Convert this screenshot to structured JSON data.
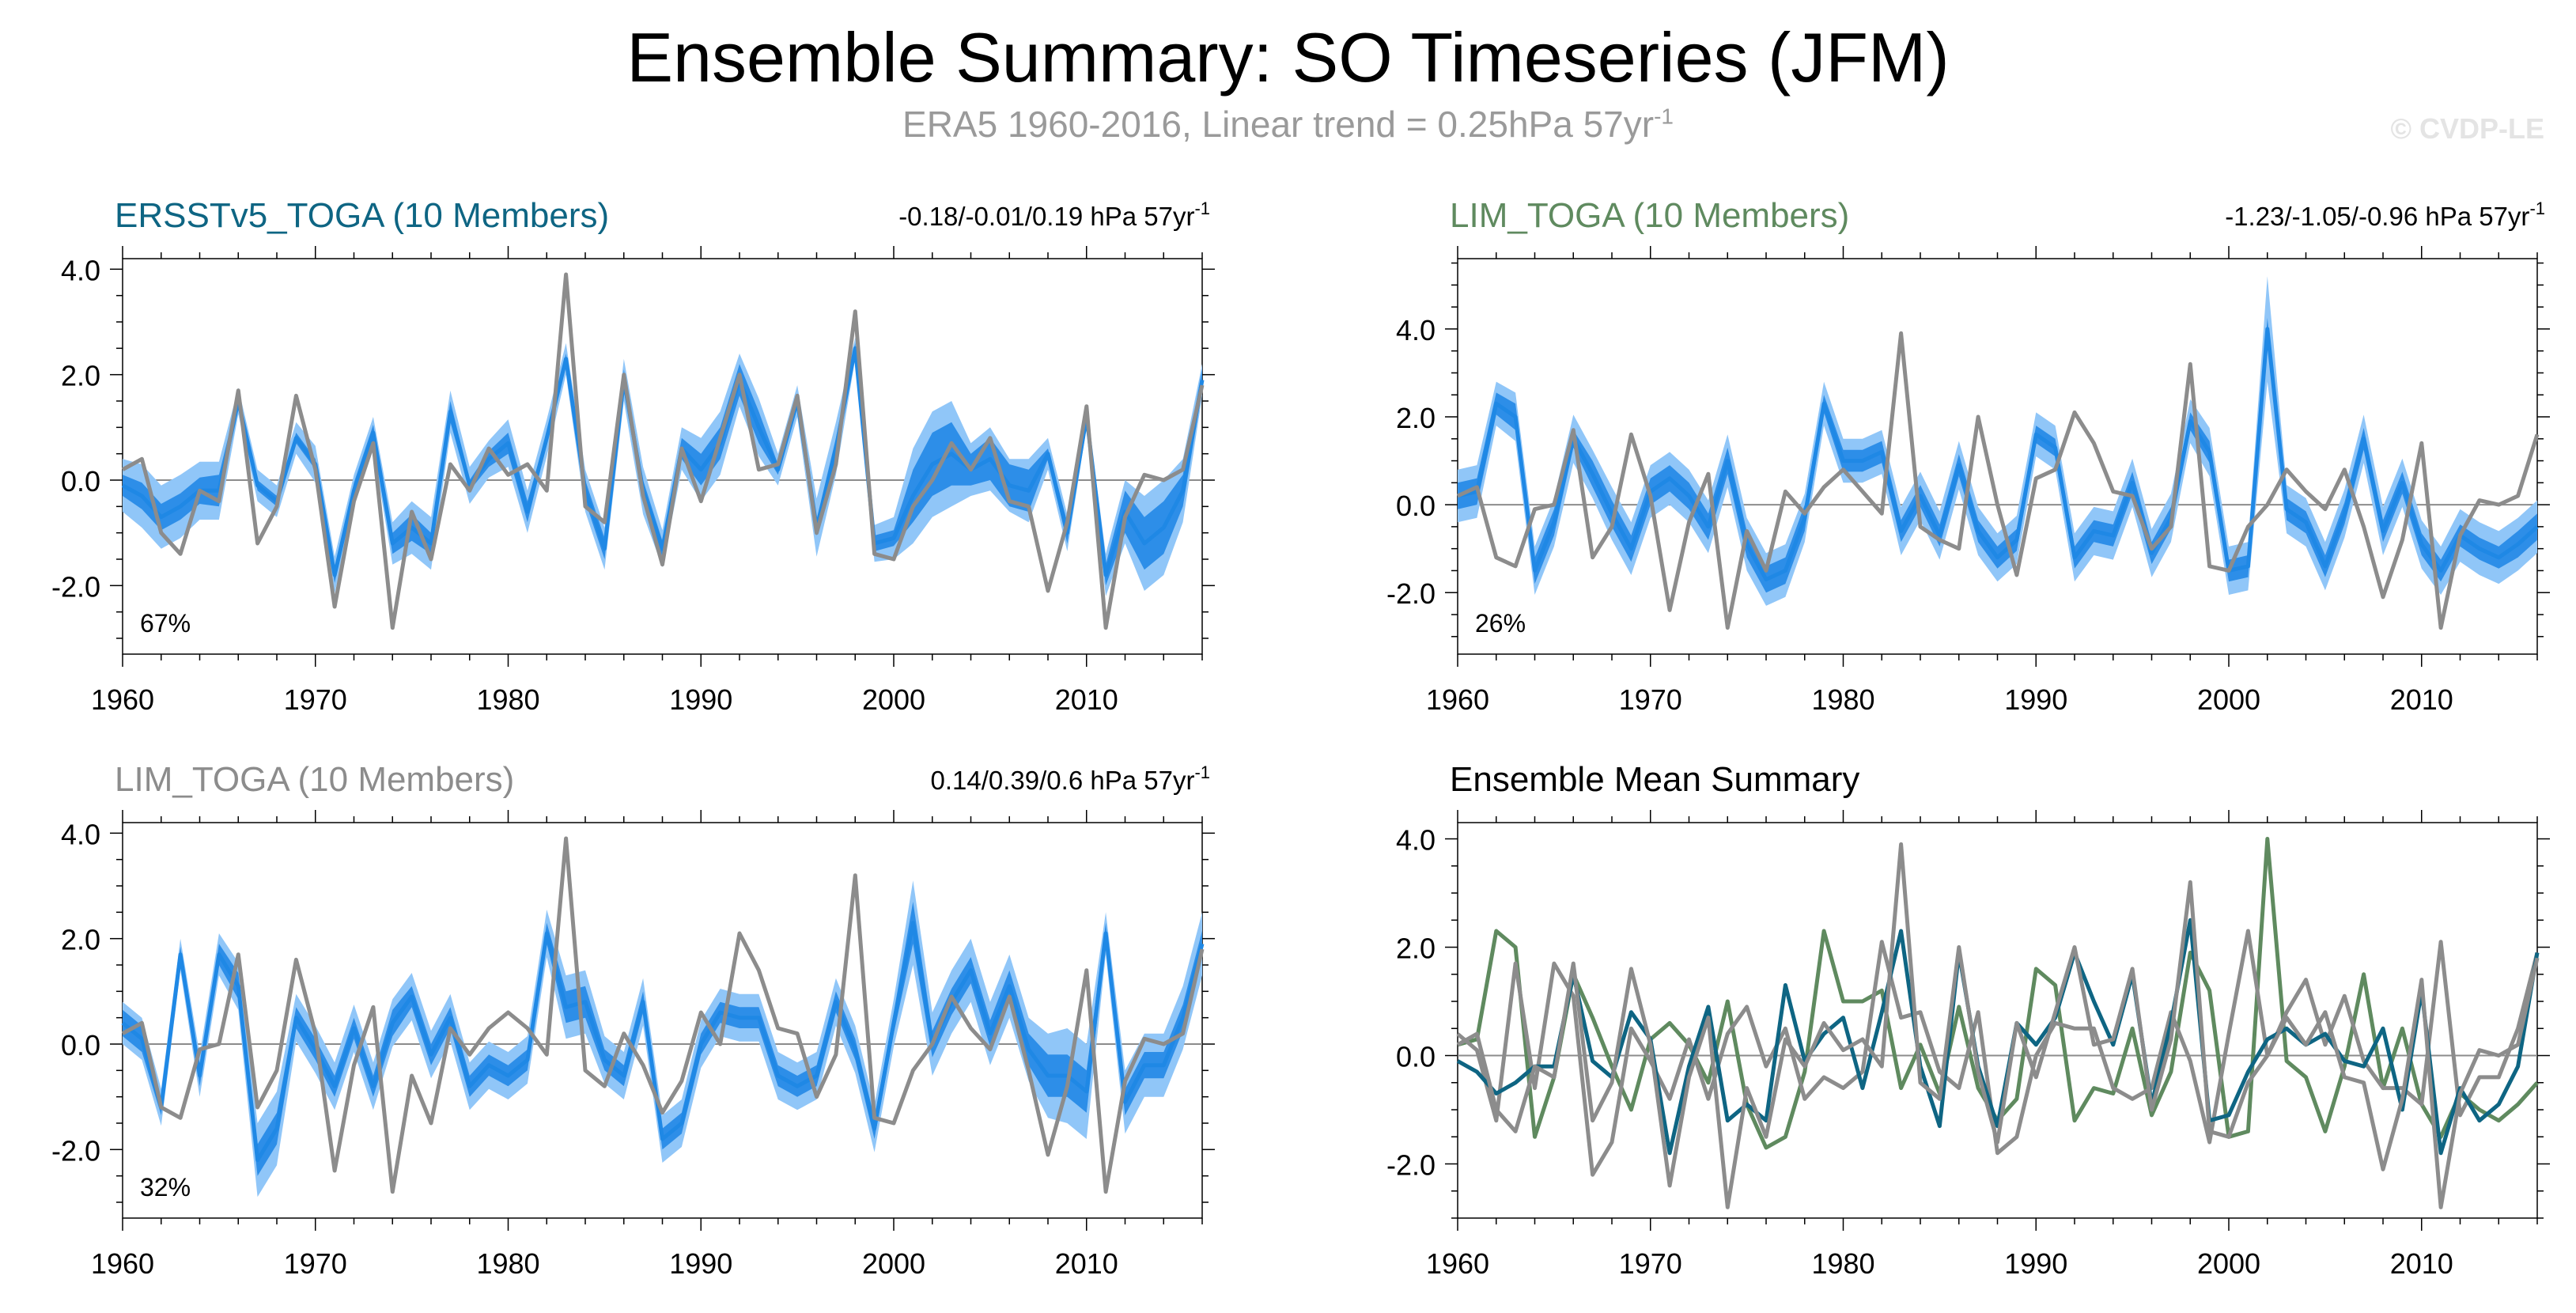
{
  "title": "Ensemble Summary: SO Timeseries (JFM)",
  "subtitle": {
    "text": "ERA5 1960-2016, Linear trend = 0.25hPa 57yr",
    "superscript": "-1"
  },
  "credit": "© CVDP-LE",
  "colors": {
    "obs": "#8c8c8c",
    "ens_mean": "#1f88e5",
    "ens_inner": "#2d8ee8",
    "ens_outer": "#90c6f8",
    "ersst": "#0e6583",
    "lim": "#5f8a5f",
    "lim_gray": "#8c8c8c",
    "zero_line": "#8c8c8c"
  },
  "chart_data": [
    {
      "id": "ersst",
      "type": "line",
      "title": "ERSSTv5_TOGA (10 Members)",
      "title_color": "#0e6583",
      "trend": {
        "text": "-0.18/-0.01/0.19 hPa 57yr",
        "superscript": "-1"
      },
      "percent": "67%",
      "ylim": [
        -3.3,
        4.2
      ],
      "yticks": [
        "4.0",
        "2.0",
        "0.0",
        "-2.0"
      ],
      "ytick_values": [
        4,
        2,
        0,
        -2
      ],
      "xlim": [
        1960,
        2016
      ],
      "xticks": [
        "1960",
        "1970",
        "1980",
        "1990",
        "2000",
        "2010"
      ],
      "obs": [
        0.2,
        0.4,
        -1.0,
        -1.4,
        -0.2,
        -0.4,
        1.7,
        -1.2,
        -0.5,
        1.6,
        0.2,
        -2.4,
        -0.4,
        0.7,
        -2.8,
        -0.6,
        -1.5,
        0.3,
        -0.2,
        0.6,
        0.1,
        0.3,
        -0.2,
        3.9,
        -0.5,
        -0.8,
        2.0,
        -0.3,
        -1.6,
        0.6,
        -0.4,
        0.8,
        2.0,
        0.2,
        0.3,
        1.6,
        -1.0,
        0.3,
        3.2,
        -1.4,
        -1.5,
        -0.5,
        0.0,
        0.7,
        0.2,
        0.8,
        -0.4,
        -0.5,
        -2.1,
        -0.8,
        1.4,
        -2.8,
        -0.7,
        0.1,
        0.0,
        0.2,
        1.8
      ],
      "mean": [
        -0.1,
        -0.3,
        -0.7,
        -0.5,
        -0.2,
        -0.2,
        1.5,
        -0.1,
        -0.4,
        0.8,
        0.3,
        -1.8,
        -0.2,
        0.9,
        -1.2,
        -0.9,
        -1.2,
        1.3,
        -0.1,
        0.4,
        0.7,
        -0.6,
        0.8,
        2.3,
        -0.2,
        -1.3,
        1.9,
        -0.2,
        -1.3,
        0.6,
        0.2,
        0.7,
        1.9,
        1.0,
        0.2,
        1.5,
        -0.9,
        0.6,
        2.5,
        -1.2,
        -1.1,
        -0.3,
        0.3,
        0.5,
        0.2,
        0.4,
        -0.1,
        -0.2,
        0.5,
        -1.0,
        1.2,
        -1.8,
        -0.6,
        -1.2,
        -0.9,
        -0.2,
        1.9
      ],
      "inner_spread": [
        0.2,
        0.25,
        0.25,
        0.25,
        0.25,
        0.3,
        0.1,
        0.1,
        0.1,
        0.1,
        0.1,
        0.15,
        0.15,
        0.15,
        0.2,
        0.25,
        0.2,
        0.2,
        0.1,
        0.15,
        0.2,
        0.2,
        0.1,
        0.1,
        0.2,
        0.2,
        0.2,
        0.2,
        0.15,
        0.2,
        0.3,
        0.3,
        0.3,
        0.3,
        0.1,
        0.1,
        0.15,
        0.2,
        0.1,
        0.15,
        0.15,
        0.5,
        0.6,
        0.6,
        0.3,
        0.4,
        0.4,
        0.4,
        0.1,
        0.2,
        0.1,
        0.2,
        0.4,
        0.5,
        0.5,
        0.3,
        0.2
      ],
      "outer_spread": [
        0.5,
        0.6,
        0.6,
        0.6,
        0.55,
        0.55,
        0.25,
        0.3,
        0.3,
        0.3,
        0.35,
        0.35,
        0.3,
        0.3,
        0.4,
        0.5,
        0.5,
        0.4,
        0.35,
        0.35,
        0.45,
        0.4,
        0.35,
        0.3,
        0.4,
        0.4,
        0.4,
        0.45,
        0.35,
        0.4,
        0.6,
        0.6,
        0.5,
        0.55,
        0.3,
        0.3,
        0.55,
        0.5,
        0.2,
        0.35,
        0.4,
        0.9,
        1.0,
        1.0,
        0.5,
        0.6,
        0.5,
        0.6,
        0.3,
        0.35,
        0.2,
        0.4,
        0.6,
        0.9,
        0.9,
        0.6,
        0.3
      ]
    },
    {
      "id": "lim1",
      "type": "line",
      "title": "LIM_TOGA (10 Members)",
      "title_color": "#5f8a5f",
      "trend": {
        "text": "-1.23/-1.05/-0.96 hPa 57yr",
        "superscript": "-1"
      },
      "percent": "26%",
      "ylim": [
        -3.4,
        5.6
      ],
      "yticks": [
        "4.0",
        "2.0",
        "0.0",
        "-2.0"
      ],
      "ytick_values": [
        4,
        2,
        0,
        -2
      ],
      "xlim": [
        1960,
        2016
      ],
      "xticks": [
        "1960",
        "1970",
        "1980",
        "1990",
        "2000",
        "2010"
      ],
      "obs": [
        0.2,
        0.4,
        -1.2,
        -1.4,
        -0.1,
        0.0,
        1.7,
        -1.2,
        -0.5,
        1.6,
        0.2,
        -2.4,
        -0.4,
        0.7,
        -2.8,
        -0.6,
        -1.5,
        0.3,
        -0.2,
        0.4,
        0.8,
        0.3,
        -0.2,
        3.9,
        -0.5,
        -0.8,
        -1.0,
        2.0,
        0.0,
        -1.6,
        0.6,
        0.8,
        2.1,
        1.4,
        0.3,
        0.2,
        -1.0,
        -0.5,
        3.2,
        -1.4,
        -1.5,
        -0.5,
        0.0,
        0.8,
        0.3,
        -0.1,
        0.8,
        -0.5,
        -2.1,
        -0.8,
        1.4,
        -2.8,
        -0.7,
        0.1,
        0.0,
        0.2,
        1.6
      ],
      "mean": [
        0.2,
        0.3,
        2.3,
        2.0,
        -1.5,
        -0.4,
        1.5,
        0.7,
        -0.2,
        -1.0,
        0.3,
        0.6,
        0.2,
        -0.5,
        1.0,
        -0.9,
        -1.7,
        -1.5,
        -0.3,
        2.3,
        1.0,
        1.0,
        1.2,
        -0.6,
        0.2,
        -0.7,
        0.9,
        -0.6,
        -1.2,
        -0.8,
        1.6,
        1.3,
        -1.2,
        -0.6,
        -0.7,
        0.5,
        -1.1,
        -0.3,
        1.9,
        1.2,
        -1.5,
        -1.4,
        4.0,
        -0.1,
        -0.4,
        -1.4,
        -0.2,
        1.5,
        -0.6,
        0.5,
        -0.9,
        -1.5,
        -0.7,
        -1.0,
        -1.2,
        -0.9,
        -0.5
      ],
      "inner_spread": [
        0.3,
        0.3,
        0.25,
        0.3,
        0.3,
        0.3,
        0.2,
        0.3,
        0.3,
        0.3,
        0.3,
        0.3,
        0.3,
        0.3,
        0.3,
        0.3,
        0.3,
        0.3,
        0.3,
        0.2,
        0.25,
        0.25,
        0.25,
        0.25,
        0.25,
        0.25,
        0.25,
        0.25,
        0.25,
        0.25,
        0.2,
        0.2,
        0.25,
        0.25,
        0.25,
        0.25,
        0.25,
        0.25,
        0.2,
        0.25,
        0.25,
        0.25,
        0.25,
        0.25,
        0.25,
        0.25,
        0.25,
        0.25,
        0.25,
        0.25,
        0.25,
        0.25,
        0.25,
        0.25,
        0.25,
        0.3,
        0.3
      ],
      "outer_spread": [
        0.6,
        0.6,
        0.5,
        0.55,
        0.55,
        0.55,
        0.55,
        0.55,
        0.6,
        0.6,
        0.6,
        0.6,
        0.6,
        0.6,
        0.6,
        0.6,
        0.6,
        0.6,
        0.55,
        0.5,
        0.5,
        0.5,
        0.5,
        0.55,
        0.55,
        0.55,
        0.55,
        0.55,
        0.55,
        0.55,
        0.5,
        0.5,
        0.55,
        0.55,
        0.55,
        0.55,
        0.55,
        0.55,
        0.5,
        0.55,
        0.55,
        0.55,
        1.2,
        0.55,
        0.55,
        0.55,
        0.55,
        0.55,
        0.55,
        0.55,
        0.55,
        0.55,
        0.6,
        0.6,
        0.6,
        0.6,
        0.6
      ]
    },
    {
      "id": "lim2",
      "type": "line",
      "title": "LIM_TOGA (10 Members)",
      "title_color": "#8c8c8c",
      "trend": {
        "text": "0.14/0.39/0.6 hPa 57yr",
        "superscript": "-1"
      },
      "percent": "32%",
      "ylim": [
        -3.3,
        4.2
      ],
      "yticks": [
        "4.0",
        "2.0",
        "0.0",
        "-2.0"
      ],
      "ytick_values": [
        4,
        2,
        0,
        -2
      ],
      "xlim": [
        1960,
        2016
      ],
      "xticks": [
        "1960",
        "1970",
        "1980",
        "1990",
        "2000",
        "2010"
      ],
      "obs": [
        0.2,
        0.4,
        -1.2,
        -1.4,
        -0.1,
        0.0,
        1.7,
        -1.2,
        -0.5,
        1.6,
        0.2,
        -2.4,
        -0.4,
        0.7,
        -2.8,
        -0.6,
        -1.5,
        0.3,
        -0.2,
        0.3,
        0.6,
        0.3,
        -0.2,
        3.9,
        -0.5,
        -0.8,
        0.2,
        -0.4,
        -1.3,
        -0.7,
        0.6,
        0.0,
        2.1,
        1.4,
        0.3,
        0.2,
        -1.0,
        -0.2,
        3.2,
        -1.4,
        -1.5,
        -0.5,
        0.0,
        0.9,
        0.3,
        -0.1,
        0.9,
        -0.5,
        -2.1,
        -0.8,
        1.4,
        -2.8,
        -0.7,
        0.1,
        0.0,
        0.2,
        1.8
      ],
      "mean": [
        0.4,
        0.1,
        -1.2,
        1.7,
        -0.6,
        1.7,
        1.1,
        -2.2,
        -1.6,
        0.5,
        -0.1,
        -0.8,
        0.3,
        -0.8,
        0.4,
        0.9,
        -0.2,
        0.5,
        -0.8,
        -0.4,
        -0.6,
        -0.3,
        2.1,
        0.7,
        0.8,
        -0.3,
        -0.6,
        0.8,
        -1.8,
        -1.5,
        0.0,
        0.6,
        0.5,
        0.5,
        -0.6,
        -0.8,
        -0.6,
        0.8,
        -0.1,
        -1.6,
        0.4,
        2.3,
        0.0,
        0.8,
        1.4,
        0.2,
        1.1,
        -0.1,
        -0.6,
        -0.6,
        -0.9,
        2.1,
        -1.1,
        -0.4,
        -0.4,
        0.5,
        1.9
      ],
      "inner_spread": [
        0.25,
        0.25,
        0.15,
        0.15,
        0.2,
        0.2,
        0.25,
        0.3,
        0.3,
        0.2,
        0.2,
        0.2,
        0.2,
        0.2,
        0.25,
        0.2,
        0.2,
        0.2,
        0.2,
        0.2,
        0.2,
        0.2,
        0.2,
        0.3,
        0.3,
        0.2,
        0.2,
        0.2,
        0.2,
        0.2,
        0.2,
        0.2,
        0.2,
        0.2,
        0.2,
        0.2,
        0.2,
        0.2,
        0.2,
        0.2,
        0.2,
        0.4,
        0.25,
        0.25,
        0.25,
        0.25,
        0.3,
        0.3,
        0.4,
        0.4,
        0.4,
        0.2,
        0.25,
        0.25,
        0.25,
        0.25,
        0.25
      ],
      "outer_spread": [
        0.4,
        0.4,
        0.35,
        0.3,
        0.4,
        0.4,
        0.45,
        0.7,
        0.7,
        0.45,
        0.45,
        0.45,
        0.45,
        0.45,
        0.45,
        0.45,
        0.45,
        0.45,
        0.45,
        0.45,
        0.45,
        0.45,
        0.45,
        0.6,
        0.6,
        0.45,
        0.45,
        0.45,
        0.45,
        0.45,
        0.45,
        0.45,
        0.45,
        0.45,
        0.45,
        0.45,
        0.45,
        0.45,
        0.45,
        0.45,
        0.45,
        0.8,
        0.6,
        0.6,
        0.6,
        0.6,
        0.6,
        0.6,
        0.8,
        0.9,
        0.9,
        0.4,
        0.6,
        0.6,
        0.6,
        0.6,
        0.6
      ]
    },
    {
      "id": "summary",
      "type": "line",
      "title": "Ensemble Mean Summary",
      "title_color": "#000000",
      "ylim": [
        -3.0,
        4.3
      ],
      "yticks": [
        "4.0",
        "2.0",
        "0.0",
        "-2.0"
      ],
      "ytick_values": [
        4,
        2,
        0,
        -2
      ],
      "xlim": [
        1960,
        2016
      ],
      "xticks": [
        "1960",
        "1970",
        "1980",
        "1990",
        "2000",
        "2010"
      ],
      "series": [
        {
          "name": "LIM_TOGA (10 Members)",
          "color": "#5f8a5f",
          "source": "lim1"
        },
        {
          "name": "LIM_TOGA (10 Members)",
          "color": "#8c8c8c",
          "source": "lim2"
        },
        {
          "name": "ERSSTv5_TOGA (10 Members)",
          "color": "#0e6583",
          "source": "ersst"
        },
        {
          "name": "ERA5",
          "color": "#8c8c8c",
          "source": "obs"
        }
      ]
    }
  ]
}
